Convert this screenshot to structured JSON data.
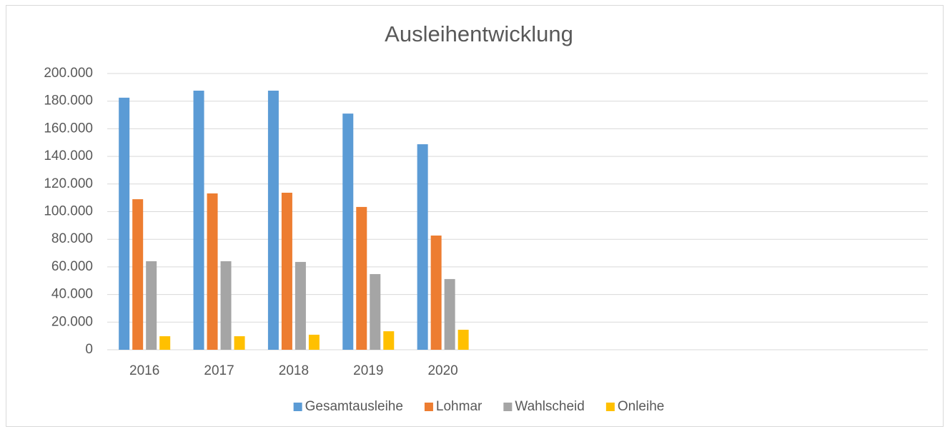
{
  "chart_data": {
    "type": "bar",
    "title": "Ausleihentwicklung",
    "categories": [
      "2016",
      "2017",
      "2018",
      "2019",
      "2020",
      null,
      null,
      null,
      null,
      null,
      null
    ],
    "series": [
      {
        "name": "Gesamtausleihe",
        "color": "#5b9bd5",
        "values": [
          182500,
          187600,
          187600,
          171000,
          148800,
          null,
          null,
          null,
          null,
          null,
          null
        ]
      },
      {
        "name": "Lohmar",
        "color": "#ed7d31",
        "values": [
          109000,
          113200,
          113700,
          103400,
          82700,
          null,
          null,
          null,
          null,
          null,
          null
        ]
      },
      {
        "name": "Wahlscheid",
        "color": "#a5a5a5",
        "values": [
          64100,
          64100,
          63600,
          54800,
          51200,
          null,
          null,
          null,
          null,
          null,
          null
        ]
      },
      {
        "name": "Onleihe",
        "color": "#ffc000",
        "values": [
          9800,
          9800,
          10900,
          13400,
          14500,
          null,
          null,
          null,
          null,
          null,
          null
        ]
      }
    ],
    "ylim": [
      0,
      200000
    ],
    "yticks": [
      0,
      {
        "value": 20000,
        "label": "20.000"
      },
      {
        "value": 40000,
        "label": "40.000"
      },
      {
        "value": 60000,
        "label": "60.000"
      },
      {
        "value": 80000,
        "label": "80.000"
      },
      {
        "value": 100000,
        "label": "100.000"
      },
      {
        "value": 120000,
        "label": "120.000"
      },
      {
        "value": 140000,
        "label": "140.000"
      },
      {
        "value": 160000,
        "label": "160.000"
      },
      {
        "value": 180000,
        "label": "180.000"
      },
      {
        "value": 200000,
        "label": "200.000"
      }
    ],
    "grid": true,
    "legend": "bottom"
  }
}
